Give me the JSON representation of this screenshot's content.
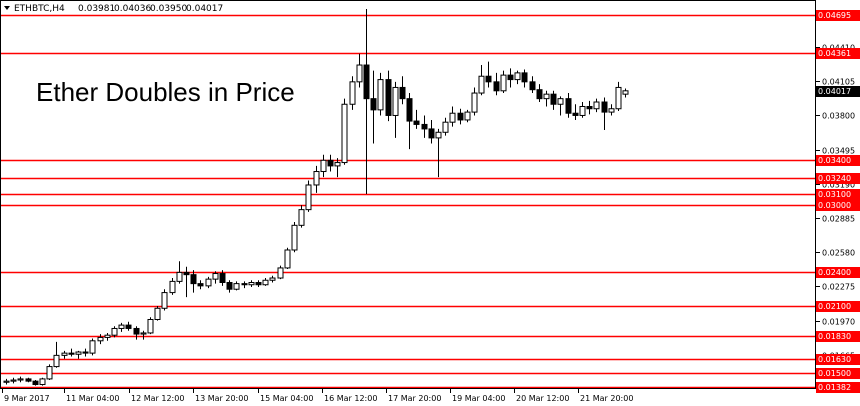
{
  "chart_data": {
    "type": "candlestick",
    "symbol_header": "ETHBTC,H4",
    "ohlc_header": [
      "0.03981",
      "0.04036",
      "0.03950",
      "0.04017"
    ],
    "title": "Ether Doubles in Price",
    "current_price": 0.04017,
    "ylim": [
      0.0136,
      0.0483
    ],
    "y_ticks": [
      0.04695,
      0.0441,
      0.04105,
      0.038,
      0.03495,
      0.0319,
      0.02885,
      0.0258,
      0.02275,
      0.0197,
      0.01665,
      0.0136
    ],
    "y_tick_labels": [
      "0.04695",
      "0.04410",
      "0.04105",
      "0.03800",
      "0.03495",
      "0.03190",
      "0.02885",
      "0.02580",
      "0.02275",
      "0.01970",
      "0.01665",
      "0.01360"
    ],
    "x_tick_labels": [
      "9 Mar 2017",
      "11 Mar 04:00",
      "12 Mar 12:00",
      "13 Mar 20:00",
      "15 Mar 04:00",
      "16 Mar 12:00",
      "17 Mar 20:00",
      "19 Mar 04:00",
      "20 Mar 12:00",
      "21 Mar 20:00"
    ],
    "levels": [
      0.04695,
      0.04361,
      0.034,
      0.0324,
      0.031,
      0.03,
      0.024,
      0.021,
      0.0183,
      0.0163,
      0.015,
      0.01382
    ],
    "level_labels": [
      "0.04695",
      "0.04361",
      "0.03400",
      "0.03240",
      "0.03100",
      "0.03000",
      "0.02400",
      "0.02100",
      "0.01830",
      "0.01630",
      "0.01500",
      "0.01382"
    ],
    "level_color": "#ff0000",
    "up_color": "#ffffff",
    "down_color": "#000000",
    "candles": [
      [
        0.0142,
        0.0145,
        0.014,
        0.0143
      ],
      [
        0.0143,
        0.0146,
        0.0141,
        0.0144
      ],
      [
        0.0144,
        0.0147,
        0.0142,
        0.0145
      ],
      [
        0.0145,
        0.0146,
        0.0142,
        0.0143
      ],
      [
        0.0143,
        0.0144,
        0.0139,
        0.014
      ],
      [
        0.014,
        0.0146,
        0.0139,
        0.0145
      ],
      [
        0.0145,
        0.0158,
        0.0144,
        0.0156
      ],
      [
        0.0156,
        0.0178,
        0.0155,
        0.0166
      ],
      [
        0.0166,
        0.017,
        0.0163,
        0.0168
      ],
      [
        0.0168,
        0.0172,
        0.0165,
        0.0167
      ],
      [
        0.0167,
        0.017,
        0.0163,
        0.0169
      ],
      [
        0.0169,
        0.0172,
        0.0165,
        0.0168
      ],
      [
        0.0168,
        0.0181,
        0.0166,
        0.0179
      ],
      [
        0.0179,
        0.0185,
        0.0176,
        0.0182
      ],
      [
        0.0182,
        0.0186,
        0.0179,
        0.0184
      ],
      [
        0.0184,
        0.0192,
        0.0182,
        0.019
      ],
      [
        0.019,
        0.0195,
        0.0187,
        0.0193
      ],
      [
        0.0193,
        0.0196,
        0.0188,
        0.019
      ],
      [
        0.019,
        0.0192,
        0.018,
        0.0185
      ],
      [
        0.0185,
        0.0188,
        0.018,
        0.0186
      ],
      [
        0.0186,
        0.02,
        0.0185,
        0.0198
      ],
      [
        0.0198,
        0.021,
        0.0197,
        0.0208
      ],
      [
        0.0208,
        0.0225,
        0.0206,
        0.0222
      ],
      [
        0.0222,
        0.0235,
        0.022,
        0.0232
      ],
      [
        0.0232,
        0.025,
        0.023,
        0.024
      ],
      [
        0.024,
        0.0245,
        0.0218,
        0.0238
      ],
      [
        0.0238,
        0.0242,
        0.0222,
        0.023
      ],
      [
        0.023,
        0.0233,
        0.0225,
        0.0228
      ],
      [
        0.0228,
        0.0236,
        0.0226,
        0.0234
      ],
      [
        0.0234,
        0.0241,
        0.023,
        0.0239
      ],
      [
        0.0239,
        0.0242,
        0.0228,
        0.0231
      ],
      [
        0.0231,
        0.0233,
        0.0222,
        0.0225
      ],
      [
        0.0225,
        0.0232,
        0.0224,
        0.023
      ],
      [
        0.023,
        0.0232,
        0.0226,
        0.0229
      ],
      [
        0.0229,
        0.0233,
        0.0227,
        0.0231
      ],
      [
        0.0231,
        0.0233,
        0.0227,
        0.0229
      ],
      [
        0.0229,
        0.0235,
        0.0228,
        0.0233
      ],
      [
        0.0233,
        0.0237,
        0.0231,
        0.0235
      ],
      [
        0.0235,
        0.0246,
        0.0234,
        0.0244
      ],
      [
        0.0244,
        0.0262,
        0.0243,
        0.026
      ],
      [
        0.026,
        0.0285,
        0.0258,
        0.0282
      ],
      [
        0.0282,
        0.03,
        0.028,
        0.0296
      ],
      [
        0.0296,
        0.0322,
        0.0294,
        0.0318
      ],
      [
        0.0318,
        0.0335,
        0.0311,
        0.033
      ],
      [
        0.033,
        0.0345,
        0.0325,
        0.034
      ],
      [
        0.034,
        0.0345,
        0.033,
        0.0335
      ],
      [
        0.0335,
        0.0342,
        0.0325,
        0.0338
      ],
      [
        0.0338,
        0.0395,
        0.0336,
        0.039
      ],
      [
        0.039,
        0.0415,
        0.0385,
        0.041
      ],
      [
        0.041,
        0.0435,
        0.0405,
        0.0425
      ],
      [
        0.0425,
        0.0475,
        0.031,
        0.0395
      ],
      [
        0.0395,
        0.042,
        0.0355,
        0.0385
      ],
      [
        0.0385,
        0.0418,
        0.038,
        0.0412
      ],
      [
        0.0412,
        0.042,
        0.0375,
        0.038
      ],
      [
        0.038,
        0.041,
        0.036,
        0.0405
      ],
      [
        0.0405,
        0.0415,
        0.039,
        0.0395
      ],
      [
        0.0395,
        0.04,
        0.035,
        0.0375
      ],
      [
        0.0375,
        0.0385,
        0.0368,
        0.0372
      ],
      [
        0.0372,
        0.038,
        0.036,
        0.0368
      ],
      [
        0.0368,
        0.0376,
        0.0355,
        0.036
      ],
      [
        0.036,
        0.0368,
        0.0325,
        0.0365
      ],
      [
        0.0365,
        0.0378,
        0.0362,
        0.0374
      ],
      [
        0.0374,
        0.0388,
        0.037,
        0.0382
      ],
      [
        0.0382,
        0.0386,
        0.0372,
        0.0376
      ],
      [
        0.0376,
        0.0385,
        0.0374,
        0.0383
      ],
      [
        0.0383,
        0.0405,
        0.038,
        0.04
      ],
      [
        0.04,
        0.0425,
        0.0398,
        0.0415
      ],
      [
        0.0415,
        0.0428,
        0.0405,
        0.041
      ],
      [
        0.041,
        0.0418,
        0.0398,
        0.0402
      ],
      [
        0.0402,
        0.042,
        0.04,
        0.0416
      ],
      [
        0.0416,
        0.0422,
        0.0405,
        0.0412
      ],
      [
        0.0412,
        0.042,
        0.0408,
        0.0418
      ],
      [
        0.0418,
        0.0421,
        0.0405,
        0.041
      ],
      [
        0.041,
        0.0415,
        0.04,
        0.0403
      ],
      [
        0.0403,
        0.0408,
        0.0392,
        0.0395
      ],
      [
        0.0395,
        0.0402,
        0.0388,
        0.0399
      ],
      [
        0.0399,
        0.0402,
        0.0385,
        0.039
      ],
      [
        0.039,
        0.0397,
        0.038,
        0.0395
      ],
      [
        0.0395,
        0.04,
        0.0378,
        0.0382
      ],
      [
        0.0382,
        0.039,
        0.0376,
        0.038
      ],
      [
        0.038,
        0.0392,
        0.0378,
        0.0388
      ],
      [
        0.0388,
        0.0393,
        0.0381,
        0.0386
      ],
      [
        0.0386,
        0.0395,
        0.0383,
        0.0392
      ],
      [
        0.0392,
        0.0396,
        0.0367,
        0.0383
      ],
      [
        0.0383,
        0.039,
        0.038,
        0.0386
      ],
      [
        0.0386,
        0.041,
        0.0384,
        0.0405
      ],
      [
        0.0399,
        0.0404,
        0.0396,
        0.0402
      ]
    ]
  }
}
